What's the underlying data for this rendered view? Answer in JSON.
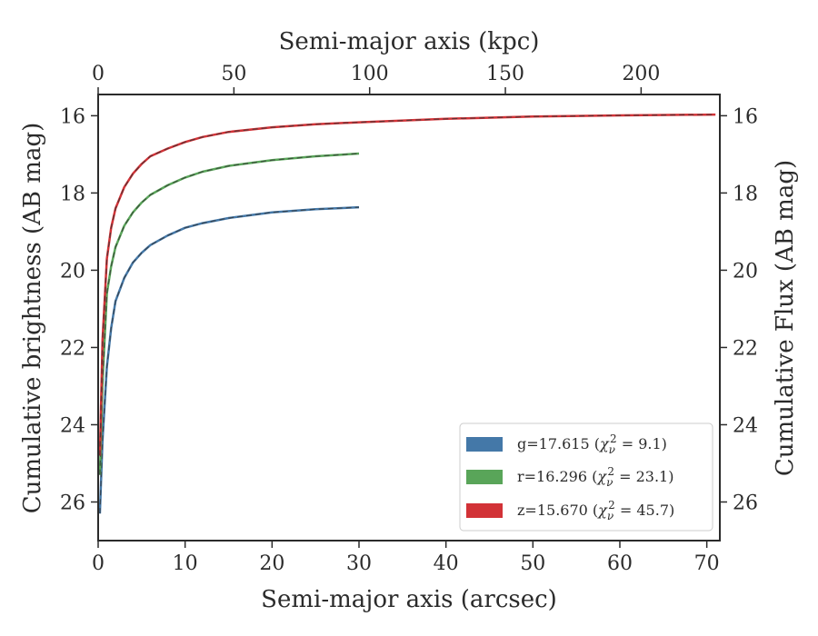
{
  "chart_data": {
    "type": "line",
    "xlabel_bottom": "Semi-major axis (arcsec)",
    "xlabel_top": "Semi-major axis (kpc)",
    "ylabel_left": "Cumulative brightness (AB mag)",
    "ylabel_right": "Cumulative Flux (AB mag)",
    "xlim": [
      0,
      71.5
    ],
    "ylim": [
      27,
      15.45
    ],
    "y_inverted": true,
    "x_ticks": [
      "0",
      "10",
      "20",
      "30",
      "40",
      "50",
      "60",
      "70"
    ],
    "x_tick_values": [
      0,
      10,
      20,
      30,
      40,
      50,
      60,
      70
    ],
    "top_ticks": [
      "0",
      "50",
      "100",
      "150",
      "200"
    ],
    "top_tick_values": [
      0,
      50,
      100,
      150,
      200
    ],
    "top_xlim": [
      0,
      229
    ],
    "y_ticks": [
      "16",
      "18",
      "20",
      "22",
      "24",
      "26"
    ],
    "y_tick_values": [
      16,
      18,
      20,
      22,
      24,
      26
    ],
    "grid": false,
    "legend_position": "lower-right",
    "series": [
      {
        "name": "g",
        "legend": "g=17.615 (χ²ν = 9.1)",
        "legend_band": "g=17.615 (",
        "legend_stat": " = 9.1)",
        "color": "#4478a8",
        "x": [
          0.2,
          0.5,
          1,
          1.5,
          2,
          3,
          4,
          5,
          6,
          8,
          10,
          12,
          15,
          20,
          25,
          30
        ],
        "y": [
          26.3,
          24.4,
          22.5,
          21.5,
          20.8,
          20.2,
          19.8,
          19.55,
          19.35,
          19.1,
          18.9,
          18.78,
          18.65,
          18.5,
          18.42,
          18.37
        ]
      },
      {
        "name": "r",
        "legend": "r=16.296 (χ²ν = 23.1)",
        "legend_band": "r=16.296 (",
        "legend_stat": " = 23.1)",
        "color": "#59a559",
        "x": [
          0.2,
          0.5,
          1,
          1.5,
          2,
          3,
          4,
          5,
          6,
          8,
          10,
          12,
          15,
          20,
          25,
          30
        ],
        "y": [
          25.3,
          22.9,
          20.6,
          19.9,
          19.4,
          18.85,
          18.5,
          18.25,
          18.05,
          17.8,
          17.6,
          17.45,
          17.3,
          17.15,
          17.05,
          16.98
        ]
      },
      {
        "name": "z",
        "legend": "z=15.670 (χ²ν = 45.7)",
        "legend_band": "z=15.670 (",
        "legend_stat": " = 45.7)",
        "color": "#d23237",
        "x": [
          0.2,
          0.5,
          1,
          1.5,
          2,
          3,
          4,
          5,
          6,
          8,
          10,
          12,
          15,
          20,
          25,
          30,
          40,
          50,
          60,
          71
        ],
        "y": [
          24.8,
          21.8,
          19.7,
          18.9,
          18.4,
          17.85,
          17.5,
          17.25,
          17.05,
          16.85,
          16.68,
          16.55,
          16.42,
          16.3,
          16.22,
          16.17,
          16.08,
          16.02,
          15.99,
          15.97
        ]
      }
    ]
  }
}
